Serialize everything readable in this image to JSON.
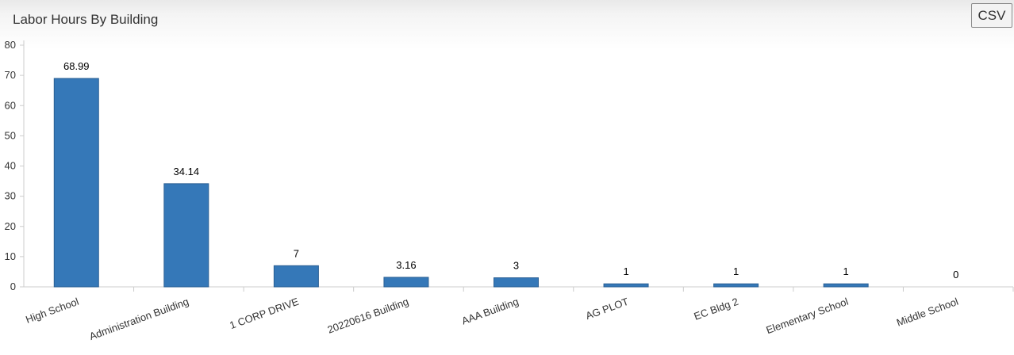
{
  "header": {
    "title": "Labor Hours By Building",
    "csv_label": "CSV"
  },
  "colors": {
    "bar": "#3578b8",
    "axis": "#cccccc"
  },
  "chart_data": {
    "type": "bar",
    "title": "Labor Hours By Building",
    "xlabel": "",
    "ylabel": "",
    "ylim": [
      0,
      80
    ],
    "yticks": [
      0,
      10,
      20,
      30,
      40,
      50,
      60,
      70,
      80
    ],
    "grid": false,
    "categories": [
      "High School",
      "Administration Building",
      "1 CORP DRIVE",
      "20220616 Building",
      "AAA Building",
      "AG PLOT",
      "EC Bldg 2",
      "Elementary School",
      "Middle School"
    ],
    "values": [
      68.99,
      34.14,
      7,
      3.16,
      3,
      1,
      1,
      1,
      0
    ],
    "data_labels": [
      "68.99",
      "34.14",
      "7",
      "3.16",
      "3",
      "1",
      "1",
      "1",
      "0"
    ]
  }
}
